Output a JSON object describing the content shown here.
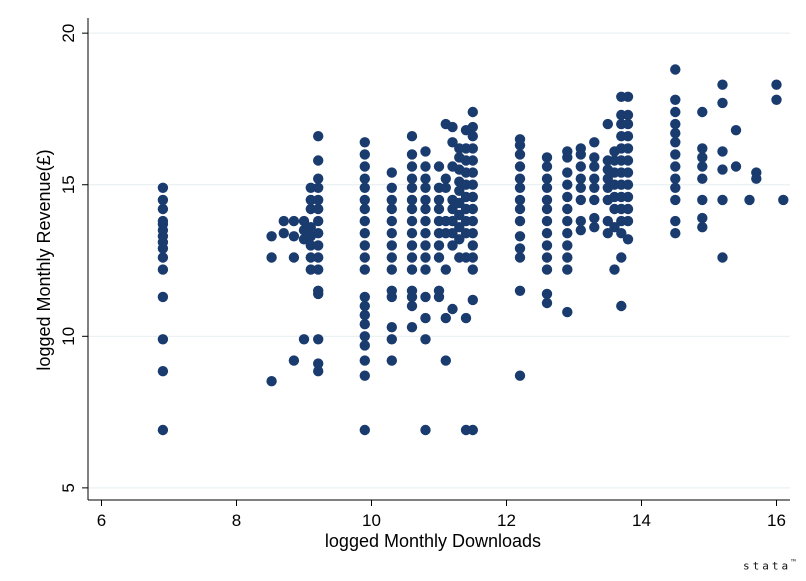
{
  "chart_data": {
    "type": "scatter",
    "title": "",
    "xlabel": "logged Monthly Downloads",
    "ylabel": "logged Monthly Revenue(£)",
    "xlim": [
      5.8,
      16.2
    ],
    "ylim": [
      4.6,
      20.5
    ],
    "xticks": [
      6,
      8,
      10,
      12,
      14,
      16
    ],
    "yticks": [
      5,
      10,
      15,
      20
    ],
    "grid": true,
    "legend": "none",
    "marker_color": "#1a3b6e",
    "points": [
      [
        6.91,
        6.91
      ],
      [
        6.91,
        8.85
      ],
      [
        6.91,
        9.9
      ],
      [
        6.91,
        11.3
      ],
      [
        6.91,
        12.2
      ],
      [
        6.91,
        12.6
      ],
      [
        6.91,
        12.9
      ],
      [
        6.91,
        13.1
      ],
      [
        6.91,
        13.3
      ],
      [
        6.91,
        13.5
      ],
      [
        6.91,
        13.7
      ],
      [
        6.91,
        13.8
      ],
      [
        6.91,
        14.2
      ],
      [
        6.91,
        14.5
      ],
      [
        6.91,
        14.9
      ],
      [
        8.52,
        8.52
      ],
      [
        8.52,
        12.6
      ],
      [
        8.52,
        13.3
      ],
      [
        8.7,
        13.4
      ],
      [
        8.7,
        13.8
      ],
      [
        8.85,
        9.2
      ],
      [
        8.85,
        12.6
      ],
      [
        8.85,
        13.3
      ],
      [
        8.85,
        13.8
      ],
      [
        9.0,
        9.9
      ],
      [
        9.0,
        13.2
      ],
      [
        9.0,
        13.5
      ],
      [
        9.0,
        13.8
      ],
      [
        9.1,
        12.2
      ],
      [
        9.1,
        12.6
      ],
      [
        9.1,
        13.0
      ],
      [
        9.1,
        13.3
      ],
      [
        9.1,
        13.6
      ],
      [
        9.1,
        14.2
      ],
      [
        9.1,
        14.5
      ],
      [
        9.1,
        14.9
      ],
      [
        9.21,
        8.85
      ],
      [
        9.21,
        9.1
      ],
      [
        9.21,
        9.9
      ],
      [
        9.21,
        11.4
      ],
      [
        9.21,
        11.5
      ],
      [
        9.21,
        12.2
      ],
      [
        9.21,
        12.6
      ],
      [
        9.21,
        13.0
      ],
      [
        9.21,
        13.4
      ],
      [
        9.21,
        13.8
      ],
      [
        9.21,
        14.2
      ],
      [
        9.21,
        14.5
      ],
      [
        9.21,
        14.9
      ],
      [
        9.21,
        15.2
      ],
      [
        9.21,
        15.8
      ],
      [
        9.21,
        16.6
      ],
      [
        9.9,
        6.91
      ],
      [
        9.9,
        8.7
      ],
      [
        9.9,
        9.2
      ],
      [
        9.9,
        9.7
      ],
      [
        9.9,
        10.0
      ],
      [
        9.9,
        10.4
      ],
      [
        9.9,
        10.7
      ],
      [
        9.9,
        11.0
      ],
      [
        9.9,
        11.3
      ],
      [
        9.9,
        12.2
      ],
      [
        9.9,
        12.6
      ],
      [
        9.9,
        13.0
      ],
      [
        9.9,
        13.4
      ],
      [
        9.9,
        13.8
      ],
      [
        9.9,
        14.2
      ],
      [
        9.9,
        14.5
      ],
      [
        9.9,
        14.9
      ],
      [
        9.9,
        15.2
      ],
      [
        9.9,
        15.6
      ],
      [
        9.9,
        16.0
      ],
      [
        9.9,
        16.4
      ],
      [
        10.3,
        9.2
      ],
      [
        10.3,
        9.9
      ],
      [
        10.3,
        10.3
      ],
      [
        10.3,
        11.3
      ],
      [
        10.3,
        11.5
      ],
      [
        10.3,
        12.2
      ],
      [
        10.3,
        12.6
      ],
      [
        10.3,
        13.0
      ],
      [
        10.3,
        13.4
      ],
      [
        10.3,
        13.8
      ],
      [
        10.3,
        14.2
      ],
      [
        10.3,
        14.5
      ],
      [
        10.3,
        14.9
      ],
      [
        10.3,
        15.4
      ],
      [
        10.6,
        10.3
      ],
      [
        10.6,
        11.0
      ],
      [
        10.6,
        11.3
      ],
      [
        10.6,
        11.5
      ],
      [
        10.6,
        12.2
      ],
      [
        10.6,
        12.6
      ],
      [
        10.6,
        13.0
      ],
      [
        10.6,
        13.4
      ],
      [
        10.6,
        13.8
      ],
      [
        10.6,
        14.2
      ],
      [
        10.6,
        14.5
      ],
      [
        10.6,
        14.9
      ],
      [
        10.6,
        15.2
      ],
      [
        10.6,
        15.6
      ],
      [
        10.6,
        16.0
      ],
      [
        10.6,
        16.6
      ],
      [
        10.8,
        6.91
      ],
      [
        10.8,
        9.9
      ],
      [
        10.8,
        10.6
      ],
      [
        10.8,
        11.3
      ],
      [
        10.8,
        12.2
      ],
      [
        10.8,
        12.6
      ],
      [
        10.8,
        13.0
      ],
      [
        10.8,
        13.4
      ],
      [
        10.8,
        13.8
      ],
      [
        10.8,
        14.2
      ],
      [
        10.8,
        14.5
      ],
      [
        10.8,
        14.9
      ],
      [
        10.8,
        15.2
      ],
      [
        10.8,
        15.6
      ],
      [
        10.8,
        16.1
      ],
      [
        11.0,
        11.3
      ],
      [
        11.0,
        11.5
      ],
      [
        11.0,
        12.6
      ],
      [
        11.0,
        13.0
      ],
      [
        11.0,
        13.4
      ],
      [
        11.0,
        13.8
      ],
      [
        11.0,
        14.2
      ],
      [
        11.0,
        14.5
      ],
      [
        11.0,
        14.9
      ],
      [
        11.0,
        15.6
      ],
      [
        11.1,
        9.2
      ],
      [
        11.1,
        10.6
      ],
      [
        11.1,
        12.2
      ],
      [
        11.1,
        13.4
      ],
      [
        11.1,
        13.8
      ],
      [
        11.1,
        14.9
      ],
      [
        11.1,
        15.2
      ],
      [
        11.1,
        17.0
      ],
      [
        11.2,
        10.9
      ],
      [
        11.2,
        13.0
      ],
      [
        11.2,
        13.4
      ],
      [
        11.2,
        13.8
      ],
      [
        11.2,
        14.2
      ],
      [
        11.2,
        14.5
      ],
      [
        11.2,
        15.6
      ],
      [
        11.2,
        16.4
      ],
      [
        11.2,
        16.9
      ],
      [
        11.3,
        12.6
      ],
      [
        11.3,
        13.2
      ],
      [
        11.3,
        13.6
      ],
      [
        11.3,
        14.0
      ],
      [
        11.3,
        14.4
      ],
      [
        11.3,
        14.8
      ],
      [
        11.3,
        15.1
      ],
      [
        11.3,
        15.5
      ],
      [
        11.3,
        15.9
      ],
      [
        11.3,
        16.2
      ],
      [
        11.4,
        6.91
      ],
      [
        11.4,
        10.6
      ],
      [
        11.4,
        12.6
      ],
      [
        11.4,
        13.4
      ],
      [
        11.4,
        13.8
      ],
      [
        11.4,
        14.2
      ],
      [
        11.4,
        14.6
      ],
      [
        11.4,
        15.0
      ],
      [
        11.4,
        15.4
      ],
      [
        11.4,
        15.8
      ],
      [
        11.4,
        16.2
      ],
      [
        11.4,
        16.8
      ],
      [
        11.5,
        6.91
      ],
      [
        11.5,
        11.2
      ],
      [
        11.5,
        12.2
      ],
      [
        11.5,
        12.6
      ],
      [
        11.5,
        13.0
      ],
      [
        11.5,
        13.4
      ],
      [
        11.5,
        13.8
      ],
      [
        11.5,
        14.2
      ],
      [
        11.5,
        14.6
      ],
      [
        11.5,
        15.0
      ],
      [
        11.5,
        15.4
      ],
      [
        11.5,
        15.8
      ],
      [
        11.5,
        16.2
      ],
      [
        11.5,
        16.6
      ],
      [
        11.5,
        16.9
      ],
      [
        11.5,
        17.4
      ],
      [
        12.2,
        8.7
      ],
      [
        12.2,
        11.5
      ],
      [
        12.2,
        12.6
      ],
      [
        12.2,
        12.9
      ],
      [
        12.2,
        13.3
      ],
      [
        12.2,
        13.8
      ],
      [
        12.2,
        14.2
      ],
      [
        12.2,
        14.5
      ],
      [
        12.2,
        14.9
      ],
      [
        12.2,
        15.2
      ],
      [
        12.2,
        15.6
      ],
      [
        12.2,
        16.0
      ],
      [
        12.2,
        16.3
      ],
      [
        12.2,
        16.5
      ],
      [
        12.6,
        11.1
      ],
      [
        12.6,
        11.4
      ],
      [
        12.6,
        12.2
      ],
      [
        12.6,
        12.6
      ],
      [
        12.6,
        13.0
      ],
      [
        12.6,
        13.4
      ],
      [
        12.6,
        13.8
      ],
      [
        12.6,
        14.2
      ],
      [
        12.6,
        14.5
      ],
      [
        12.6,
        14.9
      ],
      [
        12.6,
        15.2
      ],
      [
        12.6,
        15.6
      ],
      [
        12.6,
        15.9
      ],
      [
        12.9,
        10.8
      ],
      [
        12.9,
        12.2
      ],
      [
        12.9,
        12.6
      ],
      [
        12.9,
        13.0
      ],
      [
        12.9,
        13.4
      ],
      [
        12.9,
        13.8
      ],
      [
        12.9,
        14.2
      ],
      [
        12.9,
        14.6
      ],
      [
        12.9,
        15.0
      ],
      [
        12.9,
        15.4
      ],
      [
        12.9,
        15.9
      ],
      [
        12.9,
        16.1
      ],
      [
        13.1,
        13.5
      ],
      [
        13.1,
        13.8
      ],
      [
        13.1,
        14.5
      ],
      [
        13.1,
        14.9
      ],
      [
        13.1,
        15.2
      ],
      [
        13.1,
        15.6
      ],
      [
        13.1,
        16.0
      ],
      [
        13.1,
        16.2
      ],
      [
        13.3,
        13.6
      ],
      [
        13.3,
        13.9
      ],
      [
        13.3,
        14.5
      ],
      [
        13.3,
        14.9
      ],
      [
        13.3,
        15.2
      ],
      [
        13.3,
        15.6
      ],
      [
        13.3,
        15.9
      ],
      [
        13.3,
        16.4
      ],
      [
        13.5,
        13.4
      ],
      [
        13.5,
        13.8
      ],
      [
        13.5,
        14.5
      ],
      [
        13.5,
        14.9
      ],
      [
        13.5,
        15.2
      ],
      [
        13.5,
        15.5
      ],
      [
        13.5,
        15.8
      ],
      [
        13.5,
        17.0
      ],
      [
        13.6,
        12.2
      ],
      [
        13.6,
        13.6
      ],
      [
        13.6,
        14.2
      ],
      [
        13.6,
        14.6
      ],
      [
        13.6,
        15.0
      ],
      [
        13.6,
        15.4
      ],
      [
        13.6,
        15.8
      ],
      [
        13.6,
        16.1
      ],
      [
        13.7,
        11.0
      ],
      [
        13.7,
        12.6
      ],
      [
        13.7,
        13.4
      ],
      [
        13.7,
        13.8
      ],
      [
        13.7,
        14.2
      ],
      [
        13.7,
        14.6
      ],
      [
        13.7,
        15.0
      ],
      [
        13.7,
        15.4
      ],
      [
        13.7,
        15.8
      ],
      [
        13.7,
        16.2
      ],
      [
        13.7,
        16.6
      ],
      [
        13.7,
        17.0
      ],
      [
        13.7,
        17.3
      ],
      [
        13.7,
        17.9
      ],
      [
        13.8,
        13.2
      ],
      [
        13.8,
        13.8
      ],
      [
        13.8,
        14.2
      ],
      [
        13.8,
        14.6
      ],
      [
        13.8,
        15.0
      ],
      [
        13.8,
        15.4
      ],
      [
        13.8,
        15.8
      ],
      [
        13.8,
        16.2
      ],
      [
        13.8,
        16.6
      ],
      [
        13.8,
        17.0
      ],
      [
        13.8,
        17.3
      ],
      [
        13.8,
        17.9
      ],
      [
        14.5,
        13.4
      ],
      [
        14.5,
        13.8
      ],
      [
        14.5,
        14.5
      ],
      [
        14.5,
        14.9
      ],
      [
        14.5,
        15.2
      ],
      [
        14.5,
        15.6
      ],
      [
        14.5,
        16.0
      ],
      [
        14.5,
        16.4
      ],
      [
        14.5,
        16.7
      ],
      [
        14.5,
        17.0
      ],
      [
        14.5,
        17.4
      ],
      [
        14.5,
        17.8
      ],
      [
        14.5,
        18.8
      ],
      [
        14.9,
        13.6
      ],
      [
        14.9,
        13.9
      ],
      [
        14.9,
        14.5
      ],
      [
        14.9,
        15.2
      ],
      [
        14.9,
        15.6
      ],
      [
        14.9,
        15.9
      ],
      [
        14.9,
        16.2
      ],
      [
        14.9,
        17.4
      ],
      [
        15.2,
        12.6
      ],
      [
        15.2,
        14.5
      ],
      [
        15.2,
        15.5
      ],
      [
        15.2,
        16.1
      ],
      [
        15.2,
        17.7
      ],
      [
        15.2,
        18.3
      ],
      [
        15.4,
        15.6
      ],
      [
        15.4,
        16.8
      ],
      [
        15.6,
        14.5
      ],
      [
        15.7,
        15.2
      ],
      [
        15.7,
        15.4
      ],
      [
        16.0,
        17.8
      ],
      [
        16.0,
        18.3
      ],
      [
        16.1,
        14.5
      ]
    ]
  },
  "branding": {
    "logo_text": "stata",
    "tm": "™"
  }
}
